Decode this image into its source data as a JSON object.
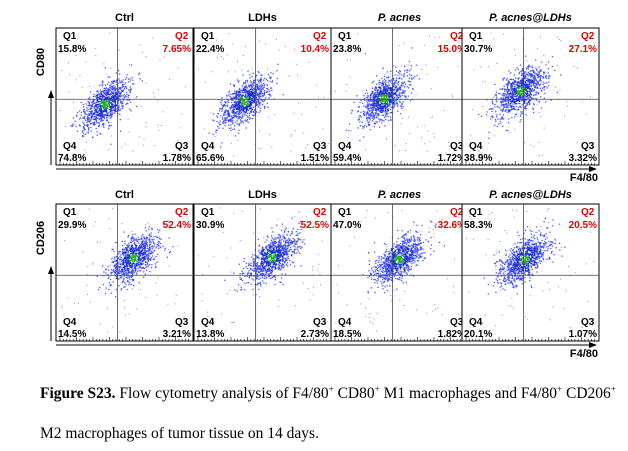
{
  "figure": {
    "columns": [
      "Ctrl",
      "LDHs",
      "P. acnes",
      "P. acnes@LDHs"
    ],
    "column_italic": [
      false,
      false,
      true,
      true
    ],
    "x_axis_label": "F4/80",
    "quadrant_names": [
      "Q1",
      "Q2",
      "Q3",
      "Q4"
    ],
    "colors": {
      "q2_label": "#e00000",
      "dot_dense": "#1a2cd6",
      "dot_sparse": "#2b3cff",
      "hot": "#22aa22"
    },
    "rows": [
      {
        "marker": "CD80",
        "panels": [
          {
            "q1": "15.8%",
            "q2": "7.65%",
            "q3": "1.78%",
            "q4": "74.8%"
          },
          {
            "q1": "22.4%",
            "q2": "10.4%",
            "q3": "1.51%",
            "q4": "65.6%"
          },
          {
            "q1": "23.8%",
            "q2": "15.0%",
            "q3": "1.72%",
            "q4": "59.4%"
          },
          {
            "q1": "30.7%",
            "q2": "27.1%",
            "q3": "3.32%",
            "q4": "38.9%"
          }
        ]
      },
      {
        "marker": "CD206",
        "panels": [
          {
            "q1": "29.9%",
            "q2": "52.4%",
            "q3": "3.21%",
            "q4": "14.5%"
          },
          {
            "q1": "30.9%",
            "q2": "52.5%",
            "q3": "2.73%",
            "q4": "13.8%"
          },
          {
            "q1": "47.0%",
            "q2": "32.6%",
            "q3": "1.82%",
            "q4": "18.5%"
          },
          {
            "q1": "58.3%",
            "q2": "20.5%",
            "q3": "1.07%",
            "q4": "20.1%"
          }
        ]
      }
    ]
  },
  "caption": {
    "label": "Figure S23.",
    "line1_a": " Flow cytometry analysis of F4/80",
    "sup1": "+",
    "line1_b": " CD80",
    "sup2": "+",
    "line1_c": " M1 macrophages and F4/80",
    "sup3": "+",
    "line1_d": " CD206",
    "sup4": "+",
    "line2": "M2 macrophages of tumor tissue on 14 days."
  }
}
